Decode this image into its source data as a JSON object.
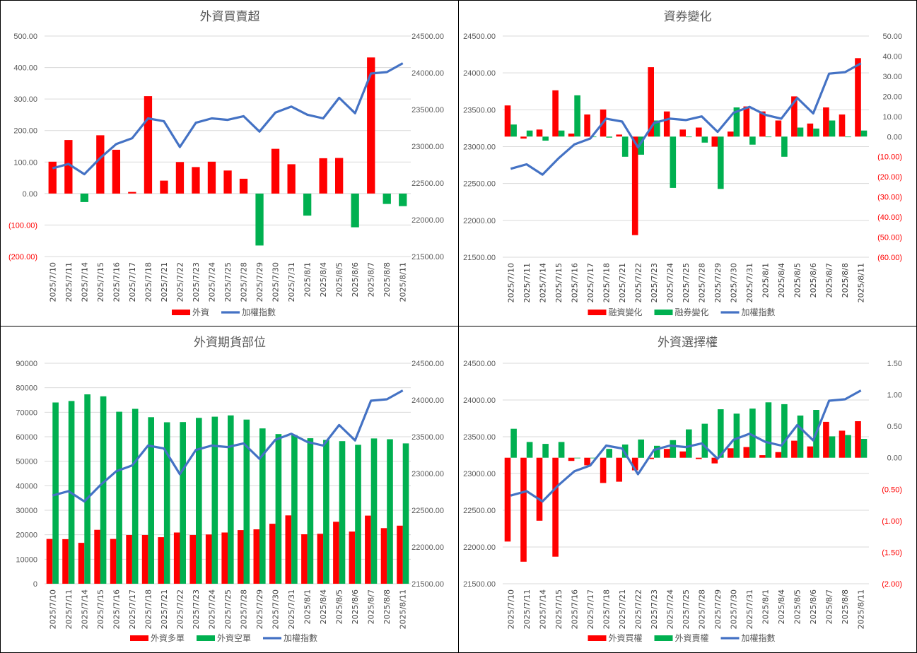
{
  "colors": {
    "red": "#ff0000",
    "green": "#00b050",
    "blue": "#4472c4",
    "grid": "#d9d9d9",
    "text": "#595959"
  },
  "chart_data": [
    {
      "type": "bar",
      "title": "外資買賣超",
      "categories": [
        "2025/7/10",
        "2025/7/11",
        "2025/7/14",
        "2025/7/15",
        "2025/7/16",
        "2025/7/17",
        "2025/7/18",
        "2025/7/21",
        "2025/7/22",
        "2025/7/23",
        "2025/7/24",
        "2025/7/25",
        "2025/7/28",
        "2025/7/29",
        "2025/7/30",
        "2025/7/31",
        "2025/8/1",
        "2025/8/4",
        "2025/8/5",
        "2025/8/6",
        "2025/8/7",
        "2025/8/8",
        "2025/8/11"
      ],
      "left_axis": {
        "ylim": [
          -200,
          500
        ],
        "ticks": [
          "(200.00)",
          "(100.00)",
          "0.00",
          "100.00",
          "200.00",
          "300.00",
          "400.00",
          "500.00"
        ]
      },
      "right_axis": {
        "ylim": [
          21500,
          24500
        ],
        "ticks": [
          "21500.00",
          "22000.00",
          "22500.00",
          "23000.00",
          "23500.00",
          "24000.00",
          "24500.00"
        ]
      },
      "series": [
        {
          "name": "外資",
          "type": "bar",
          "axis": "left",
          "color_rule": "sign",
          "values": [
            101,
            170,
            -27,
            185,
            139,
            5,
            309,
            41,
            100,
            84,
            101,
            73,
            47,
            -165,
            142,
            93,
            -70,
            112,
            113,
            -107,
            432,
            -33,
            -40
          ]
        },
        {
          "name": "加權指數",
          "type": "line",
          "axis": "right",
          "color": "#4472c4",
          "values": [
            22700,
            22760,
            22620,
            22840,
            23030,
            23110,
            23380,
            23340,
            22990,
            23320,
            23380,
            23360,
            23410,
            23200,
            23460,
            23540,
            23430,
            23380,
            23660,
            23450,
            23990,
            24010,
            24130
          ]
        }
      ],
      "grid": true,
      "legend": "bottom"
    },
    {
      "type": "bar",
      "title": "資券變化",
      "categories": [
        "2025/7/10",
        "2025/7/11",
        "2025/7/14",
        "2025/7/15",
        "2025/7/16",
        "2025/7/17",
        "2025/7/18",
        "2025/7/21",
        "2025/7/22",
        "2025/7/23",
        "2025/7/24",
        "2025/7/25",
        "2025/7/28",
        "2025/7/29",
        "2025/7/30",
        "2025/7/31",
        "2025/8/1",
        "2025/8/4",
        "2025/8/5",
        "2025/8/6",
        "2025/8/7",
        "2025/8/8",
        "2025/8/11"
      ],
      "left_axis": {
        "ylim": [
          21500,
          24500
        ],
        "ticks": [
          "21500.00",
          "22000.00",
          "22500.00",
          "23000.00",
          "23500.00",
          "24000.00",
          "24500.00"
        ]
      },
      "right_axis": {
        "ylim": [
          -60,
          50
        ],
        "ticks": [
          "(60.00)",
          "(50.00)",
          "(40.00)",
          "(30.00)",
          "(20.00)",
          "(10.00)",
          "0.00",
          "10.00",
          "20.00",
          "30.00",
          "40.00",
          "50.00"
        ]
      },
      "series": [
        {
          "name": "融資變化",
          "type": "bar",
          "axis": "right",
          "color": "#ff0000",
          "values": [
            15.5,
            -1,
            3.5,
            23,
            1.5,
            11,
            13.5,
            1,
            -49,
            34.5,
            12.5,
            3.5,
            4.5,
            -5,
            2.5,
            15,
            12.5,
            8,
            20,
            6.5,
            14.5,
            11,
            39
          ]
        },
        {
          "name": "融券變化",
          "type": "bar",
          "axis": "right",
          "color": "#00b050",
          "values": [
            6,
            3,
            -2,
            3,
            20.5,
            0,
            -0.5,
            -10,
            -9,
            8,
            -25.5,
            0,
            -3,
            -26,
            14.5,
            -4,
            0,
            -10,
            4.5,
            4,
            8,
            0,
            3
          ]
        },
        {
          "name": "加權指數",
          "type": "line",
          "axis": "left",
          "color": "#4472c4",
          "values": [
            22700,
            22760,
            22620,
            22840,
            23030,
            23110,
            23380,
            23340,
            22990,
            23320,
            23380,
            23360,
            23410,
            23200,
            23460,
            23540,
            23430,
            23380,
            23660,
            23450,
            23990,
            24010,
            24130
          ]
        }
      ],
      "grid": true,
      "legend": "bottom"
    },
    {
      "type": "bar",
      "title": "外資期貨部位",
      "categories": [
        "2025/7/10",
        "2025/7/11",
        "2025/7/14",
        "2025/7/15",
        "2025/7/16",
        "2025/7/17",
        "2025/7/18",
        "2025/7/21",
        "2025/7/22",
        "2025/7/23",
        "2025/7/24",
        "2025/7/25",
        "2025/7/28",
        "2025/7/29",
        "2025/7/30",
        "2025/7/31",
        "2025/8/1",
        "2025/8/4",
        "2025/8/5",
        "2025/8/6",
        "2025/8/7",
        "2025/8/8",
        "2025/8/11"
      ],
      "left_axis": {
        "ylim": [
          0,
          90000
        ],
        "ticks": [
          "0",
          "10000",
          "20000",
          "30000",
          "40000",
          "50000",
          "60000",
          "70000",
          "80000",
          "90000"
        ]
      },
      "right_axis": {
        "ylim": [
          21500,
          24500
        ],
        "ticks": [
          "21500.00",
          "22000.00",
          "22500.00",
          "23000.00",
          "23500.00",
          "24000.00",
          "24500.00"
        ]
      },
      "series": [
        {
          "name": "外資多單",
          "type": "bar",
          "axis": "left",
          "color": "#ff0000",
          "values": [
            18300,
            18200,
            16700,
            22000,
            18300,
            19900,
            19900,
            19000,
            20900,
            19900,
            20100,
            20900,
            21900,
            22200,
            24500,
            27900,
            20200,
            20400,
            25300,
            21300,
            27800,
            22700,
            23700
          ]
        },
        {
          "name": "外資空單",
          "type": "bar",
          "axis": "left",
          "color": "#00b050",
          "values": [
            74000,
            74600,
            77300,
            76500,
            70200,
            71400,
            68000,
            65900,
            66000,
            67700,
            68200,
            68700,
            67000,
            63400,
            61100,
            60700,
            59400,
            58700,
            58200,
            56700,
            59300,
            59000,
            57300
          ]
        },
        {
          "name": "加權指數",
          "type": "line",
          "axis": "right",
          "color": "#4472c4",
          "values": [
            22700,
            22760,
            22620,
            22840,
            23030,
            23110,
            23380,
            23340,
            22990,
            23320,
            23380,
            23360,
            23410,
            23200,
            23460,
            23540,
            23430,
            23380,
            23660,
            23450,
            23990,
            24010,
            24130
          ]
        }
      ],
      "grid": true,
      "legend": "bottom"
    },
    {
      "type": "bar",
      "title": "外資選擇權",
      "categories": [
        "2025/7/10",
        "2025/7/11",
        "2025/7/14",
        "2025/7/15",
        "2025/7/16",
        "2025/7/17",
        "2025/7/18",
        "2025/7/21",
        "2025/7/22",
        "2025/7/23",
        "2025/7/24",
        "2025/7/25",
        "2025/7/28",
        "2025/7/29",
        "2025/7/30",
        "2025/7/31",
        "2025/8/1",
        "2025/8/4",
        "2025/8/5",
        "2025/8/6",
        "2025/8/7",
        "2025/8/8",
        "2025/8/11"
      ],
      "left_axis": {
        "ylim": [
          21500,
          24500
        ],
        "ticks": [
          "21500.00",
          "22000.00",
          "22500.00",
          "23000.00",
          "23500.00",
          "24000.00",
          "24500.00"
        ]
      },
      "right_axis": {
        "ylim": [
          -2,
          1.5
        ],
        "ticks": [
          "(2.00)",
          "(1.50)",
          "(1.00)",
          "(0.50)",
          "0.00",
          "0.50",
          "1.00",
          "1.50"
        ]
      },
      "series": [
        {
          "name": "外資買權",
          "type": "bar",
          "axis": "right",
          "color": "#ff0000",
          "values": [
            -1.33,
            -1.65,
            -1.0,
            -1.57,
            -0.05,
            -0.12,
            -0.4,
            -0.38,
            -0.2,
            -0.02,
            0.14,
            0.1,
            -0.02,
            -0.09,
            0.15,
            0.17,
            0.04,
            0.09,
            0.27,
            0.18,
            0.57,
            0.43,
            0.58
          ]
        },
        {
          "name": "外資賣權",
          "type": "bar",
          "axis": "right",
          "color": "#00b050",
          "values": [
            0.46,
            0.25,
            0.22,
            0.25,
            0.0,
            0.0,
            0.14,
            0.21,
            0.29,
            0.19,
            0.28,
            0.45,
            0.54,
            0.77,
            0.7,
            0.78,
            0.88,
            0.85,
            0.67,
            0.76,
            0.34,
            0.36,
            0.3
          ]
        },
        {
          "name": "加權指數",
          "type": "line",
          "axis": "left",
          "color": "#4472c4",
          "values": [
            22700,
            22760,
            22620,
            22840,
            23030,
            23110,
            23380,
            23340,
            22990,
            23320,
            23380,
            23360,
            23410,
            23200,
            23460,
            23540,
            23430,
            23380,
            23660,
            23450,
            23990,
            24010,
            24130
          ]
        }
      ],
      "grid": true,
      "legend": "bottom"
    }
  ]
}
